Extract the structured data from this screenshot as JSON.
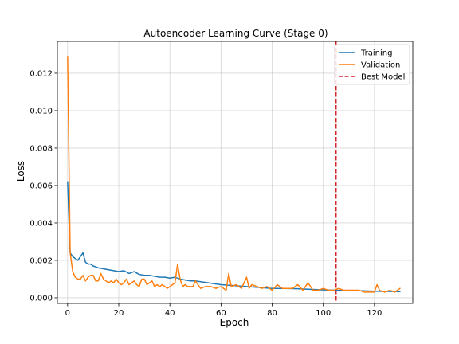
{
  "chart_data": {
    "type": "line",
    "title": "Autoencoder Learning Curve (Stage 0)",
    "xlabel": "Epoch",
    "ylabel": "Loss",
    "xlim": [
      -4,
      135
    ],
    "ylim": [
      -0.0003,
      0.0137
    ],
    "xticks": [
      0,
      20,
      40,
      60,
      80,
      100,
      120
    ],
    "yticks": [
      0.0,
      0.002,
      0.004,
      0.006,
      0.008,
      0.01,
      0.012
    ],
    "ytick_labels": [
      "0.000",
      "0.002",
      "0.004",
      "0.006",
      "0.008",
      "0.010",
      "0.012"
    ],
    "grid": true,
    "legend_position": "top-right",
    "best_model_epoch": 105,
    "series": [
      {
        "name": "Training",
        "color": "#1f77b4",
        "style": "solid",
        "x": [
          0,
          1,
          2,
          3,
          4,
          5,
          6,
          7,
          8,
          9,
          10,
          12,
          14,
          16,
          18,
          20,
          22,
          24,
          26,
          28,
          30,
          32,
          34,
          36,
          38,
          40,
          42,
          44,
          46,
          48,
          50,
          55,
          60,
          65,
          70,
          75,
          80,
          85,
          90,
          95,
          100,
          105,
          110,
          115,
          120,
          125,
          130
        ],
        "values": [
          0.0062,
          0.0024,
          0.0022,
          0.0021,
          0.002,
          0.0022,
          0.0024,
          0.0019,
          0.0018,
          0.0018,
          0.0017,
          0.0016,
          0.00155,
          0.0015,
          0.00145,
          0.0014,
          0.00145,
          0.0013,
          0.0014,
          0.00125,
          0.0012,
          0.0012,
          0.00115,
          0.0011,
          0.0011,
          0.00105,
          0.0011,
          0.001,
          0.00095,
          0.0009,
          0.0009,
          0.0008,
          0.0007,
          0.00065,
          0.0006,
          0.00055,
          0.0005,
          0.0005,
          0.00048,
          0.00045,
          0.00042,
          0.0004,
          0.00038,
          0.00037,
          0.00035,
          0.00034,
          0.00033
        ]
      },
      {
        "name": "Validation",
        "color": "#ff7f0e",
        "style": "solid",
        "x": [
          0,
          1,
          2,
          3,
          4,
          5,
          6,
          7,
          8,
          9,
          10,
          11,
          12,
          13,
          14,
          15,
          16,
          17,
          18,
          19,
          20,
          21,
          22,
          23,
          24,
          25,
          26,
          27,
          28,
          29,
          30,
          31,
          32,
          33,
          34,
          35,
          36,
          37,
          38,
          39,
          40,
          41,
          42,
          43,
          44,
          45,
          46,
          47,
          48,
          49,
          50,
          52,
          54,
          56,
          58,
          60,
          62,
          63,
          64,
          66,
          68,
          70,
          71,
          72,
          74,
          76,
          78,
          80,
          82,
          84,
          86,
          88,
          90,
          92,
          94,
          96,
          98,
          100,
          102,
          104,
          106,
          108,
          110,
          112,
          114,
          116,
          118,
          120,
          121,
          122,
          124,
          126,
          128,
          130
        ],
        "values": [
          0.0129,
          0.0024,
          0.0014,
          0.0011,
          0.001,
          0.001,
          0.0012,
          0.0009,
          0.0011,
          0.0012,
          0.0012,
          0.0009,
          0.0009,
          0.0013,
          0.001,
          0.0009,
          0.0008,
          0.0009,
          0.0008,
          0.001,
          0.0008,
          0.0007,
          0.0008,
          0.001,
          0.0007,
          0.0008,
          0.0009,
          0.0007,
          0.0006,
          0.001,
          0.001,
          0.0007,
          0.0008,
          0.0009,
          0.0006,
          0.0007,
          0.0006,
          0.0007,
          0.0006,
          0.0005,
          0.0006,
          0.0007,
          0.0008,
          0.0018,
          0.001,
          0.0006,
          0.0007,
          0.0006,
          0.0006,
          0.0006,
          0.0009,
          0.0005,
          0.0006,
          0.0006,
          0.0005,
          0.0006,
          0.0004,
          0.0013,
          0.0006,
          0.0007,
          0.0005,
          0.0011,
          0.0005,
          0.0007,
          0.0006,
          0.0005,
          0.0006,
          0.0004,
          0.0007,
          0.0005,
          0.0005,
          0.0005,
          0.0007,
          0.0004,
          0.0008,
          0.0004,
          0.0004,
          0.0005,
          0.0004,
          0.0004,
          0.0005,
          0.0004,
          0.0004,
          0.0004,
          0.0004,
          0.0003,
          0.0003,
          0.0003,
          0.0007,
          0.0004,
          0.0003,
          0.0004,
          0.0003,
          0.0005
        ]
      }
    ],
    "legend": [
      {
        "label": "Training",
        "color": "#1f77b4",
        "style": "solid"
      },
      {
        "label": "Validation",
        "color": "#ff7f0e",
        "style": "solid"
      },
      {
        "label": "Best Model",
        "color": "#d62728",
        "style": "dashed"
      }
    ]
  }
}
